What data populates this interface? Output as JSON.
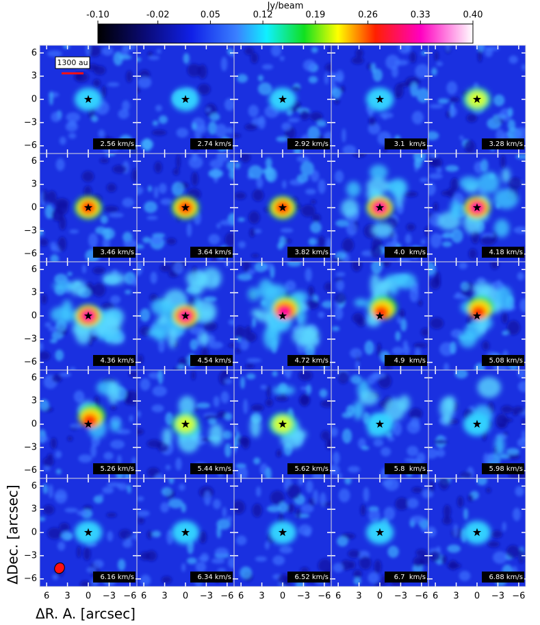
{
  "chart_data": {
    "type": "channel-map",
    "colorbar": {
      "label": "Jy/beam",
      "lim": [
        -0.1,
        0.4
      ],
      "ticks": [
        {
          "value": -0.1,
          "label": "-0.10"
        },
        -0.02,
        0.05,
        0.12,
        0.19,
        0.26,
        0.33,
        {
          "value": 0.4,
          "label": "0.40"
        }
      ]
    },
    "xlabel": "ΔR. A. [arcsec]",
    "ylabel": "ΔDec. [arcsec]",
    "xlim": [
      7,
      -7
    ],
    "ylim": [
      -7,
      7
    ],
    "xticks": [
      6,
      3,
      0,
      {
        "value": -3,
        "label": "−3"
      },
      {
        "value": -6,
        "label": "−6"
      }
    ],
    "yticks": [
      6,
      3,
      0,
      {
        "value": -3,
        "label": "−3"
      },
      {
        "value": -6,
        "label": "−6"
      }
    ],
    "scale_bar": "1300 au",
    "channels": [
      "2.56 km/s",
      "2.74 km/s",
      "2.92 km/s",
      "3.1  km/s",
      "3.28 km/s",
      "3.46 km/s",
      "3.64 km/s",
      "3.82 km/s",
      "4.0  km/s",
      "4.18 km/s",
      "4.36 km/s",
      "4.54 km/s",
      "4.72 km/s",
      "4.9  km/s",
      "5.08 km/s",
      "5.26 km/s",
      "5.44 km/s",
      "5.62 km/s",
      "5.8  km/s",
      "5.98 km/s",
      "6.16 km/s",
      "6.34 km/s",
      "6.52 km/s",
      "6.7  km/s",
      "6.88 km/s"
    ]
  }
}
